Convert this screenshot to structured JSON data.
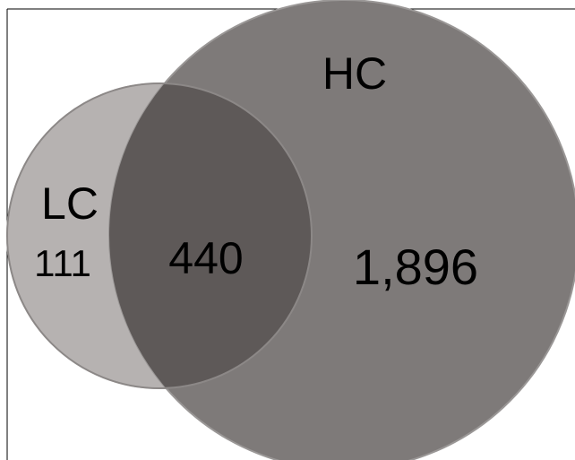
{
  "sets": {
    "lc": {
      "label": "LC",
      "unique_count": "111",
      "fill": "#b6b2b1"
    },
    "hc": {
      "label": "HC",
      "unique_count": "1,896",
      "fill": "#7e7a79"
    }
  },
  "overlap": {
    "count": "440",
    "fill": "#5e5958"
  },
  "frame": {
    "border_color": "#000000",
    "background": "#ffffff"
  }
}
